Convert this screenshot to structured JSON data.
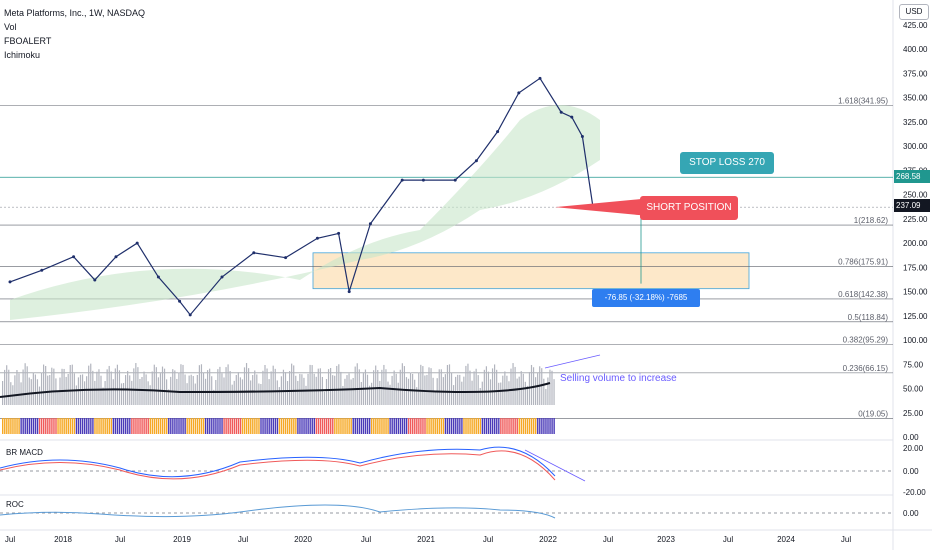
{
  "symbol": "Meta Platforms, Inc., 1W, NASDAQ",
  "indicators": [
    "Vol",
    "FBOALERT",
    "Ichimoku"
  ],
  "currency": "USD",
  "labels": {
    "stop_loss": "STOP LOSS 270",
    "short_position": "SHORT POSITION",
    "measure": "-76.85 (-32.18%) -7685",
    "volume_note": "Selling volume to increase",
    "last_price": "268.58",
    "short_price": "237.09",
    "macd_title": "BR MACD",
    "roc_title": "ROC"
  },
  "chart_data": {
    "type": "line",
    "title": "Meta Platforms, Inc., 1W, NASDAQ",
    "y_ticks": [
      "425.00",
      "400.00",
      "375.00",
      "350.00",
      "325.00",
      "300.00",
      "275.00",
      "250.00",
      "225.00",
      "200.00",
      "175.00",
      "150.00",
      "125.00",
      "100.00",
      "75.00",
      "50.00",
      "25.00",
      "0.00"
    ],
    "x_ticks": [
      "Jul",
      "2018",
      "Jul",
      "2019",
      "Jul",
      "2020",
      "Jul",
      "2021",
      "Jul",
      "2022",
      "Jul",
      "2023",
      "Jul",
      "2024",
      "Jul"
    ],
    "macd_ticks": [
      "20.00",
      "0.00",
      "-20.00"
    ],
    "roc_ticks": [
      "0.00"
    ],
    "fib_levels": [
      {
        "label": "1.618(341.95)",
        "value": 341.95
      },
      {
        "label": "1(218.62)",
        "value": 218.62
      },
      {
        "label": "0.786(175.91)",
        "value": 175.91
      },
      {
        "label": "0.618(142.38)",
        "value": 142.38
      },
      {
        "label": "0.5(118.84)",
        "value": 118.84
      },
      {
        "label": "0.382(95.29)",
        "value": 95.29
      },
      {
        "label": "0.236(66.15)",
        "value": 66.15
      },
      {
        "label": "0(19.05)",
        "value": 19.05
      }
    ],
    "price_series": {
      "x": [
        "2017-07",
        "2017-10",
        "2018-01",
        "2018-03",
        "2018-05",
        "2018-07",
        "2018-09",
        "2018-11",
        "2018-12",
        "2019-03",
        "2019-06",
        "2019-09",
        "2019-12",
        "2020-02",
        "2020-03",
        "2020-05",
        "2020-08",
        "2020-10",
        "2021-01",
        "2021-03",
        "2021-05",
        "2021-07",
        "2021-09",
        "2021-11",
        "2021-12",
        "2022-01",
        "2022-02"
      ],
      "close": [
        160,
        172,
        186,
        162,
        186,
        200,
        165,
        140,
        126,
        165,
        190,
        185,
        205,
        210,
        150,
        220,
        265,
        265,
        265,
        285,
        315,
        355,
        370,
        335,
        330,
        310,
        237
      ]
    },
    "stop_loss": 270,
    "short_entry": 237.09,
    "last_price": 268.58,
    "target_zone": [
      153,
      190
    ]
  },
  "colors": {
    "stop": "#35a6b4",
    "short": "#f0505a",
    "measure": "#2e7ef0",
    "price": "#1f2f6b",
    "fast": "#2962ff",
    "slow": "#d32f2f",
    "zone": "#fde6c4"
  }
}
